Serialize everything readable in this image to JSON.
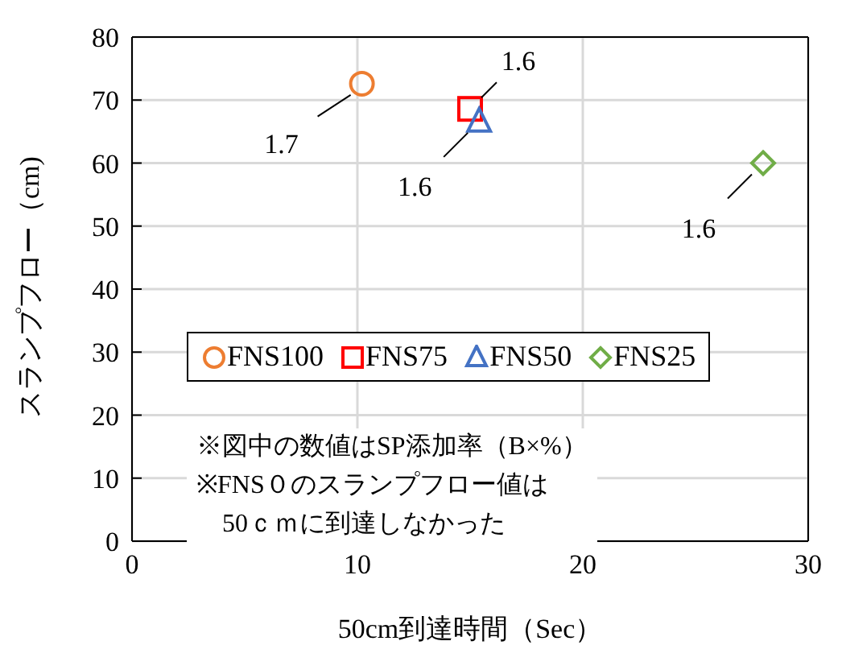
{
  "chart_data": {
    "type": "scatter",
    "xlabel": "50cm到達時間（Sec）",
    "ylabel": "スランプフロー（cm)",
    "xlim": [
      0,
      30
    ],
    "xticks": [
      0,
      10,
      20,
      30
    ],
    "ylim": [
      0,
      80
    ],
    "yticks": [
      0,
      10,
      20,
      30,
      40,
      50,
      60,
      70,
      80
    ],
    "grid": true,
    "legend": "center",
    "series": [
      {
        "name": "FNS100",
        "color": "#ed7d31",
        "marker": "circle",
        "x": [
          10.2
        ],
        "values": [
          72.6
        ]
      },
      {
        "name": "FNS75",
        "color": "#ff0000",
        "marker": "square",
        "x": [
          15.0
        ],
        "values": [
          68.6
        ]
      },
      {
        "name": "FNS50",
        "color": "#4472c4",
        "marker": "triangle",
        "x": [
          15.4
        ],
        "values": [
          66.6
        ]
      },
      {
        "name": "FNS25",
        "color": "#70ad47",
        "marker": "diamond",
        "x": [
          28.0
        ],
        "values": [
          60
        ]
      }
    ],
    "annotations": [
      {
        "text": "1.7",
        "x": 10.2,
        "y": 72.6
      },
      {
        "text": "1.6",
        "x": 15.0,
        "y": 68.6
      },
      {
        "text": "1.6",
        "x": 15.4,
        "y": 66.6
      },
      {
        "text": "1.6",
        "x": 28.0,
        "y": 60
      },
      "※図中の数値はSP添加率（B×%）",
      "※FNS０のスランプフロー値は\n　50ｃｍに到達しなかった"
    ]
  }
}
